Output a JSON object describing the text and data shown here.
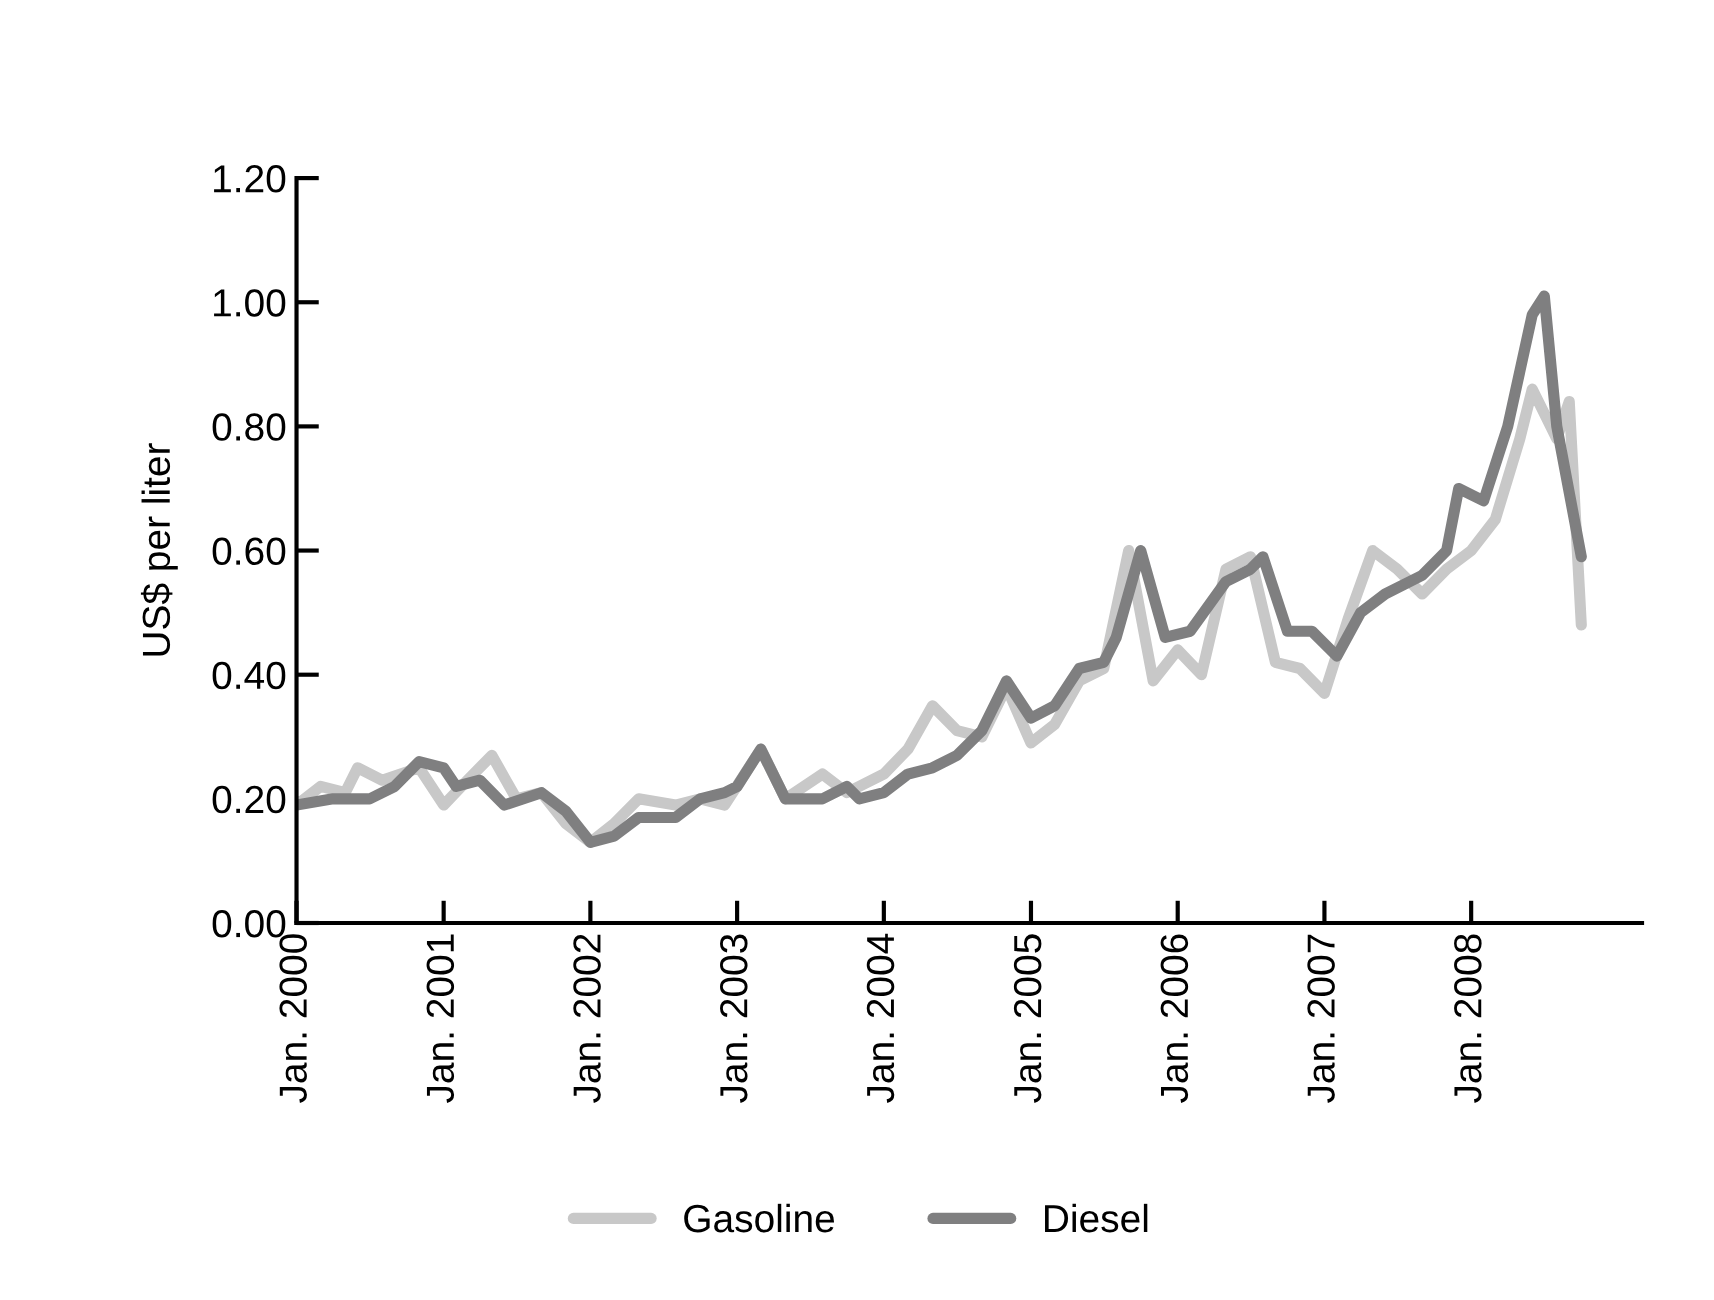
{
  "chart_data": {
    "type": "line",
    "ylabel": "US$ per liter",
    "xlim": [
      "2000-01",
      "2009-03"
    ],
    "xticks": [
      {
        "value": "2000-01",
        "label": "Jan. 2000"
      },
      {
        "value": "2001-01",
        "label": "Jan. 2001"
      },
      {
        "value": "2002-01",
        "label": "Jan. 2002"
      },
      {
        "value": "2003-01",
        "label": "Jan. 2003"
      },
      {
        "value": "2004-01",
        "label": "Jan. 2004"
      },
      {
        "value": "2005-01",
        "label": "Jan. 2005"
      },
      {
        "value": "2006-01",
        "label": "Jan. 2006"
      },
      {
        "value": "2007-01",
        "label": "Jan. 2007"
      },
      {
        "value": "2008-01",
        "label": "Jan. 2008"
      }
    ],
    "ylim": [
      0,
      1.2
    ],
    "yticks": [
      {
        "value": 0,
        "label": "0.00"
      },
      {
        "value": 0.2,
        "label": "0.20"
      },
      {
        "value": 0.4,
        "label": "0.40"
      },
      {
        "value": 0.6,
        "label": "0.60"
      },
      {
        "value": 0.8,
        "label": "0.80"
      },
      {
        "value": 1.0,
        "label": "1.00"
      },
      {
        "value": 1.2,
        "label": "1.20"
      }
    ],
    "grid": false,
    "legend": "bottom",
    "line_style": "solid",
    "marker": "none",
    "series": [
      {
        "name": "Gasoline",
        "color": "#c8c8c8",
        "x": [
          "2000-01",
          "2000-03",
          "2000-05",
          "2000-06",
          "2000-08",
          "2000-11",
          "2001-01",
          "2001-03",
          "2001-05",
          "2001-07",
          "2001-09",
          "2001-11",
          "2002-01",
          "2002-03",
          "2002-05",
          "2002-08",
          "2002-10",
          "2002-12",
          "2003-03",
          "2003-05",
          "2003-08",
          "2003-10",
          "2004-01",
          "2004-03",
          "2004-05",
          "2004-07",
          "2004-09",
          "2004-11",
          "2005-01",
          "2005-03",
          "2005-05",
          "2005-07",
          "2005-09",
          "2005-11",
          "2006-01",
          "2006-03",
          "2006-05",
          "2006-07",
          "2006-09",
          "2006-11",
          "2007-01",
          "2007-03",
          "2007-05",
          "2007-07",
          "2007-09",
          "2007-11",
          "2008-01",
          "2008-03",
          "2008-05",
          "2008-06",
          "2008-08",
          "2008-09",
          "2008-10"
        ],
        "values": [
          0.19,
          0.22,
          0.21,
          0.25,
          0.23,
          0.25,
          0.19,
          0.23,
          0.27,
          0.2,
          0.21,
          0.16,
          0.13,
          0.16,
          0.2,
          0.19,
          0.2,
          0.19,
          0.28,
          0.2,
          0.24,
          0.21,
          0.24,
          0.28,
          0.35,
          0.31,
          0.3,
          0.38,
          0.29,
          0.32,
          0.39,
          0.41,
          0.6,
          0.39,
          0.44,
          0.4,
          0.57,
          0.59,
          0.42,
          0.41,
          0.37,
          0.49,
          0.6,
          0.57,
          0.53,
          0.57,
          0.6,
          0.65,
          0.78,
          0.86,
          0.78,
          0.84,
          0.48
        ]
      },
      {
        "name": "Diesel",
        "color": "#7f7f80",
        "x": [
          "2000-01",
          "2000-04",
          "2000-07",
          "2000-09",
          "2000-11",
          "2001-01",
          "2001-02",
          "2001-04",
          "2001-06",
          "2001-09",
          "2001-11",
          "2002-01",
          "2002-03",
          "2002-05",
          "2002-08",
          "2002-10",
          "2002-12",
          "2003-01",
          "2003-03",
          "2003-05",
          "2003-08",
          "2003-10",
          "2003-11",
          "2004-01",
          "2004-03",
          "2004-05",
          "2004-07",
          "2004-09",
          "2004-11",
          "2005-01",
          "2005-03",
          "2005-05",
          "2005-07",
          "2005-08",
          "2005-10",
          "2005-12",
          "2006-02",
          "2006-05",
          "2006-07",
          "2006-08",
          "2006-10",
          "2006-12",
          "2007-02",
          "2007-04",
          "2007-06",
          "2007-09",
          "2007-11",
          "2007-12",
          "2008-02",
          "2008-04",
          "2008-06",
          "2008-07",
          "2008-08",
          "2008-10"
        ],
        "values": [
          0.19,
          0.2,
          0.2,
          0.22,
          0.26,
          0.25,
          0.22,
          0.23,
          0.19,
          0.21,
          0.18,
          0.13,
          0.14,
          0.17,
          0.17,
          0.2,
          0.21,
          0.22,
          0.28,
          0.2,
          0.2,
          0.22,
          0.2,
          0.21,
          0.24,
          0.25,
          0.27,
          0.31,
          0.39,
          0.33,
          0.35,
          0.41,
          0.42,
          0.46,
          0.6,
          0.46,
          0.47,
          0.55,
          0.57,
          0.59,
          0.47,
          0.47,
          0.43,
          0.5,
          0.53,
          0.56,
          0.6,
          0.7,
          0.68,
          0.8,
          0.98,
          1.01,
          0.8,
          0.59
        ]
      }
    ]
  }
}
